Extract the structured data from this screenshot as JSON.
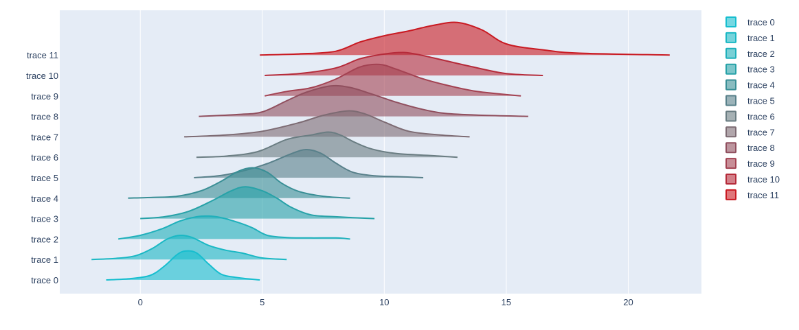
{
  "chart_data": {
    "type": "area",
    "subtype": "ridgeline",
    "title": "",
    "xlabel": "",
    "ylabel": "",
    "xlim": [
      -3.3,
      23
    ],
    "x_ticks": [
      0,
      5,
      10,
      15,
      20
    ],
    "grid": true,
    "legend_position": "right",
    "background_color": "#e5ecf6",
    "series": [
      {
        "name": "trace 0",
        "color": "#17becf",
        "points": [
          [
            -1.4,
            0
          ],
          [
            -0.5,
            0.03
          ],
          [
            0.4,
            0.12
          ],
          [
            1.0,
            0.38
          ],
          [
            1.5,
            0.68
          ],
          [
            1.85,
            0.78
          ],
          [
            2.3,
            0.73
          ],
          [
            2.8,
            0.43
          ],
          [
            3.3,
            0.16
          ],
          [
            3.9,
            0.07
          ],
          [
            4.9,
            0
          ]
        ]
      },
      {
        "name": "trace 1",
        "color": "#1ab8c4",
        "points": [
          [
            -2.0,
            0
          ],
          [
            -1.0,
            0.03
          ],
          [
            -0.2,
            0.1
          ],
          [
            0.5,
            0.3
          ],
          [
            1.1,
            0.55
          ],
          [
            1.6,
            0.65
          ],
          [
            2.1,
            0.6
          ],
          [
            2.8,
            0.38
          ],
          [
            3.5,
            0.25
          ],
          [
            4.2,
            0.17
          ],
          [
            5.0,
            0.04
          ],
          [
            6.0,
            0
          ]
        ]
      },
      {
        "name": "trace 2",
        "color": "#1fb0bb",
        "points": [
          [
            -0.9,
            0
          ],
          [
            0,
            0.1
          ],
          [
            0.9,
            0.28
          ],
          [
            1.6,
            0.48
          ],
          [
            2.3,
            0.6
          ],
          [
            2.8,
            0.62
          ],
          [
            3.3,
            0.58
          ],
          [
            4.0,
            0.45
          ],
          [
            4.6,
            0.3
          ],
          [
            5.2,
            0.1
          ],
          [
            6.0,
            0.04
          ],
          [
            7.0,
            0.03
          ],
          [
            8.0,
            0.03
          ],
          [
            8.6,
            0
          ]
        ]
      },
      {
        "name": "trace 3",
        "color": "#27a2a8",
        "points": [
          [
            0,
            0
          ],
          [
            1.0,
            0.05
          ],
          [
            2.0,
            0.2
          ],
          [
            3.0,
            0.5
          ],
          [
            3.7,
            0.74
          ],
          [
            4.3,
            0.86
          ],
          [
            5.0,
            0.75
          ],
          [
            5.6,
            0.55
          ],
          [
            6.2,
            0.3
          ],
          [
            7.0,
            0.1
          ],
          [
            8.0,
            0.05
          ],
          [
            9.6,
            0
          ]
        ]
      },
      {
        "name": "trace 4",
        "color": "#3a8f96",
        "points": [
          [
            -0.5,
            0
          ],
          [
            0.5,
            0.02
          ],
          [
            1.5,
            0.05
          ],
          [
            2.5,
            0.2
          ],
          [
            3.3,
            0.45
          ],
          [
            4.0,
            0.72
          ],
          [
            4.6,
            0.82
          ],
          [
            5.2,
            0.7
          ],
          [
            5.8,
            0.4
          ],
          [
            6.5,
            0.18
          ],
          [
            7.5,
            0.05
          ],
          [
            8.6,
            0
          ]
        ]
      },
      {
        "name": "trace 5",
        "color": "#58808a",
        "points": [
          [
            2.2,
            0
          ],
          [
            3.2,
            0.05
          ],
          [
            4.2,
            0.18
          ],
          [
            5.2,
            0.38
          ],
          [
            6.2,
            0.65
          ],
          [
            6.8,
            0.76
          ],
          [
            7.4,
            0.66
          ],
          [
            8.0,
            0.4
          ],
          [
            8.7,
            0.15
          ],
          [
            9.6,
            0.05
          ],
          [
            10.5,
            0.03
          ],
          [
            11.6,
            0
          ]
        ]
      },
      {
        "name": "trace 6",
        "color": "#6a7d82",
        "points": [
          [
            2.3,
            0
          ],
          [
            3.5,
            0.03
          ],
          [
            4.8,
            0.15
          ],
          [
            6.0,
            0.48
          ],
          [
            7.0,
            0.6
          ],
          [
            7.7,
            0.68
          ],
          [
            8.2,
            0.6
          ],
          [
            8.8,
            0.4
          ],
          [
            9.5,
            0.22
          ],
          [
            10.5,
            0.1
          ],
          [
            11.8,
            0.05
          ],
          [
            13.0,
            0
          ]
        ]
      },
      {
        "name": "trace 7",
        "color": "#7d6b73",
        "points": [
          [
            1.8,
            0
          ],
          [
            3.5,
            0.05
          ],
          [
            5.0,
            0.15
          ],
          [
            6.5,
            0.38
          ],
          [
            7.5,
            0.58
          ],
          [
            8.5,
            0.7
          ],
          [
            9.2,
            0.62
          ],
          [
            10.0,
            0.4
          ],
          [
            11.0,
            0.15
          ],
          [
            12.3,
            0.05
          ],
          [
            13.5,
            0
          ]
        ]
      },
      {
        "name": "trace 8",
        "color": "#904f5e",
        "points": [
          [
            2.4,
            0
          ],
          [
            4.0,
            0.05
          ],
          [
            5.0,
            0.12
          ],
          [
            6.0,
            0.42
          ],
          [
            6.8,
            0.65
          ],
          [
            7.8,
            0.82
          ],
          [
            8.6,
            0.78
          ],
          [
            9.5,
            0.6
          ],
          [
            10.5,
            0.38
          ],
          [
            11.5,
            0.2
          ],
          [
            12.5,
            0.08
          ],
          [
            14.0,
            0.03
          ],
          [
            15.9,
            0
          ]
        ]
      },
      {
        "name": "trace 9",
        "color": "#a34252",
        "points": [
          [
            5.1,
            0
          ],
          [
            6.0,
            0.12
          ],
          [
            7.0,
            0.22
          ],
          [
            8.0,
            0.45
          ],
          [
            9.0,
            0.78
          ],
          [
            9.8,
            0.85
          ],
          [
            10.5,
            0.72
          ],
          [
            11.5,
            0.48
          ],
          [
            12.5,
            0.3
          ],
          [
            13.8,
            0.12
          ],
          [
            15.6,
            0
          ]
        ]
      },
      {
        "name": "trace 10",
        "color": "#b52b3a",
        "points": [
          [
            5.1,
            0
          ],
          [
            6.5,
            0.05
          ],
          [
            8.0,
            0.2
          ],
          [
            9.0,
            0.45
          ],
          [
            10.0,
            0.58
          ],
          [
            10.8,
            0.62
          ],
          [
            11.5,
            0.55
          ],
          [
            12.5,
            0.4
          ],
          [
            13.5,
            0.25
          ],
          [
            15.0,
            0.05
          ],
          [
            16.5,
            0
          ]
        ]
      },
      {
        "name": "trace 11",
        "color": "#c91a22",
        "points": [
          [
            4.9,
            0
          ],
          [
            6.5,
            0.03
          ],
          [
            8.0,
            0.1
          ],
          [
            9.0,
            0.35
          ],
          [
            10.0,
            0.52
          ],
          [
            11.0,
            0.65
          ],
          [
            12.0,
            0.8
          ],
          [
            13.0,
            0.88
          ],
          [
            14.0,
            0.68
          ],
          [
            15.0,
            0.3
          ],
          [
            16.5,
            0.14
          ],
          [
            18.0,
            0.05
          ],
          [
            21.7,
            0
          ]
        ]
      }
    ]
  }
}
